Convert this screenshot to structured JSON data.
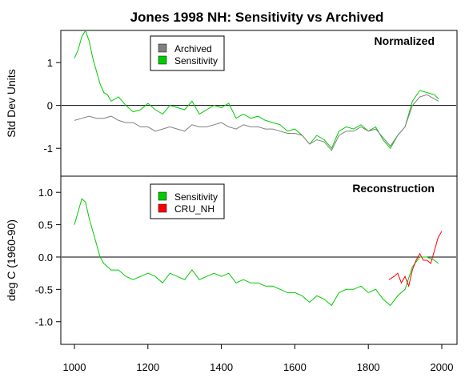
{
  "chart_data": {
    "title": "Jones 1998 NH: Sensitivity vs Archived",
    "type": "line",
    "x_ticks": [
      1000,
      1200,
      1400,
      1600,
      1800,
      2000
    ],
    "xlim": [
      1000,
      2000
    ],
    "panels": [
      {
        "label": "Normalized",
        "ylabel": "Std Dev Units",
        "ylim": [
          -1.65,
          1.75
        ],
        "y_ticks": [
          "1",
          "0",
          "-1"
        ],
        "y_tick_values": [
          1,
          0,
          -1
        ],
        "reference_line": 0,
        "legend": [
          {
            "name": "Archived",
            "color": "#808080"
          },
          {
            "name": "Sensitivity",
            "color": "#00cc00"
          }
        ],
        "series": [
          {
            "name": "Sensitivity",
            "color": "#00cc00",
            "x": [
              1000,
              1010,
              1020,
              1030,
              1040,
              1050,
              1060,
              1070,
              1080,
              1090,
              1100,
              1120,
              1140,
              1160,
              1180,
              1200,
              1220,
              1240,
              1260,
              1280,
              1300,
              1320,
              1340,
              1360,
              1380,
              1400,
              1420,
              1440,
              1460,
              1480,
              1500,
              1520,
              1540,
              1560,
              1580,
              1600,
              1620,
              1640,
              1660,
              1680,
              1700,
              1720,
              1740,
              1760,
              1780,
              1800,
              1820,
              1840,
              1860,
              1880,
              1900,
              1920,
              1940,
              1960,
              1980,
              1991
            ],
            "y": [
              1.1,
              1.3,
              1.6,
              1.75,
              1.5,
              1.1,
              0.8,
              0.5,
              0.3,
              0.25,
              0.1,
              0.2,
              0.0,
              -0.15,
              -0.1,
              0.05,
              -0.1,
              -0.2,
              0.0,
              -0.05,
              -0.1,
              0.1,
              -0.2,
              -0.1,
              0.0,
              -0.05,
              0.05,
              -0.3,
              -0.2,
              -0.3,
              -0.25,
              -0.35,
              -0.4,
              -0.45,
              -0.6,
              -0.55,
              -0.7,
              -0.9,
              -0.7,
              -0.8,
              -1.0,
              -0.6,
              -0.5,
              -0.55,
              -0.45,
              -0.6,
              -0.5,
              -0.8,
              -1.0,
              -0.7,
              -0.5,
              0.1,
              0.35,
              0.3,
              0.25,
              0.15
            ]
          },
          {
            "name": "Archived",
            "color": "#808080",
            "x": [
              1000,
              1020,
              1040,
              1060,
              1080,
              1100,
              1120,
              1140,
              1160,
              1180,
              1200,
              1220,
              1240,
              1260,
              1280,
              1300,
              1320,
              1340,
              1360,
              1380,
              1400,
              1420,
              1440,
              1460,
              1480,
              1500,
              1520,
              1540,
              1560,
              1580,
              1600,
              1620,
              1640,
              1660,
              1680,
              1700,
              1720,
              1740,
              1760,
              1780,
              1800,
              1820,
              1840,
              1860,
              1880,
              1900,
              1920,
              1940,
              1960,
              1980,
              1991
            ],
            "y": [
              -0.35,
              -0.3,
              -0.25,
              -0.3,
              -0.3,
              -0.25,
              -0.35,
              -0.4,
              -0.4,
              -0.5,
              -0.5,
              -0.6,
              -0.55,
              -0.5,
              -0.55,
              -0.6,
              -0.45,
              -0.5,
              -0.5,
              -0.45,
              -0.4,
              -0.5,
              -0.55,
              -0.45,
              -0.5,
              -0.5,
              -0.55,
              -0.55,
              -0.6,
              -0.65,
              -0.65,
              -0.7,
              -0.9,
              -0.8,
              -0.85,
              -1.05,
              -0.7,
              -0.6,
              -0.6,
              -0.5,
              -0.6,
              -0.55,
              -0.75,
              -0.95,
              -0.7,
              -0.5,
              0.0,
              0.2,
              0.25,
              0.15,
              0.1
            ]
          }
        ]
      },
      {
        "label": "Reconstruction",
        "ylabel": "deg C (1960-90)",
        "ylim": [
          -1.35,
          1.25
        ],
        "y_ticks": [
          "1.0",
          "0.5",
          "0.0",
          "-0.5",
          "-1.0"
        ],
        "y_tick_values": [
          1.0,
          0.5,
          0.0,
          -0.5,
          -1.0
        ],
        "reference_line": 0,
        "legend": [
          {
            "name": "Sensitivity",
            "color": "#00cc00"
          },
          {
            "name": "CRU_NH",
            "color": "#ff0000"
          }
        ],
        "series": [
          {
            "name": "Sensitivity",
            "color": "#00cc00",
            "x": [
              1000,
              1010,
              1020,
              1030,
              1040,
              1050,
              1060,
              1070,
              1080,
              1090,
              1100,
              1120,
              1140,
              1160,
              1180,
              1200,
              1220,
              1240,
              1260,
              1280,
              1300,
              1320,
              1340,
              1360,
              1380,
              1400,
              1420,
              1440,
              1460,
              1480,
              1500,
              1520,
              1540,
              1560,
              1580,
              1600,
              1620,
              1640,
              1660,
              1680,
              1700,
              1720,
              1740,
              1760,
              1780,
              1800,
              1820,
              1840,
              1860,
              1880,
              1900,
              1920,
              1940,
              1960,
              1980,
              1991
            ],
            "y": [
              0.5,
              0.7,
              0.9,
              0.85,
              0.6,
              0.4,
              0.2,
              0.0,
              -0.1,
              -0.15,
              -0.2,
              -0.2,
              -0.3,
              -0.35,
              -0.3,
              -0.25,
              -0.3,
              -0.4,
              -0.25,
              -0.3,
              -0.35,
              -0.2,
              -0.35,
              -0.3,
              -0.25,
              -0.3,
              -0.25,
              -0.4,
              -0.35,
              -0.4,
              -0.4,
              -0.45,
              -0.45,
              -0.5,
              -0.55,
              -0.55,
              -0.6,
              -0.7,
              -0.6,
              -0.65,
              -0.75,
              -0.55,
              -0.5,
              -0.5,
              -0.45,
              -0.55,
              -0.5,
              -0.65,
              -0.75,
              -0.6,
              -0.5,
              -0.15,
              0.0,
              0.0,
              -0.05,
              -0.1
            ]
          },
          {
            "name": "CRU_NH",
            "color": "#ff0000",
            "x": [
              1856,
              1870,
              1880,
              1890,
              1900,
              1910,
              1920,
              1930,
              1940,
              1950,
              1960,
              1970,
              1980,
              1990,
              2000
            ],
            "y": [
              -0.35,
              -0.3,
              -0.25,
              -0.4,
              -0.3,
              -0.45,
              -0.2,
              -0.05,
              0.05,
              -0.05,
              -0.05,
              -0.1,
              0.1,
              0.3,
              0.4
            ]
          }
        ]
      }
    ]
  }
}
